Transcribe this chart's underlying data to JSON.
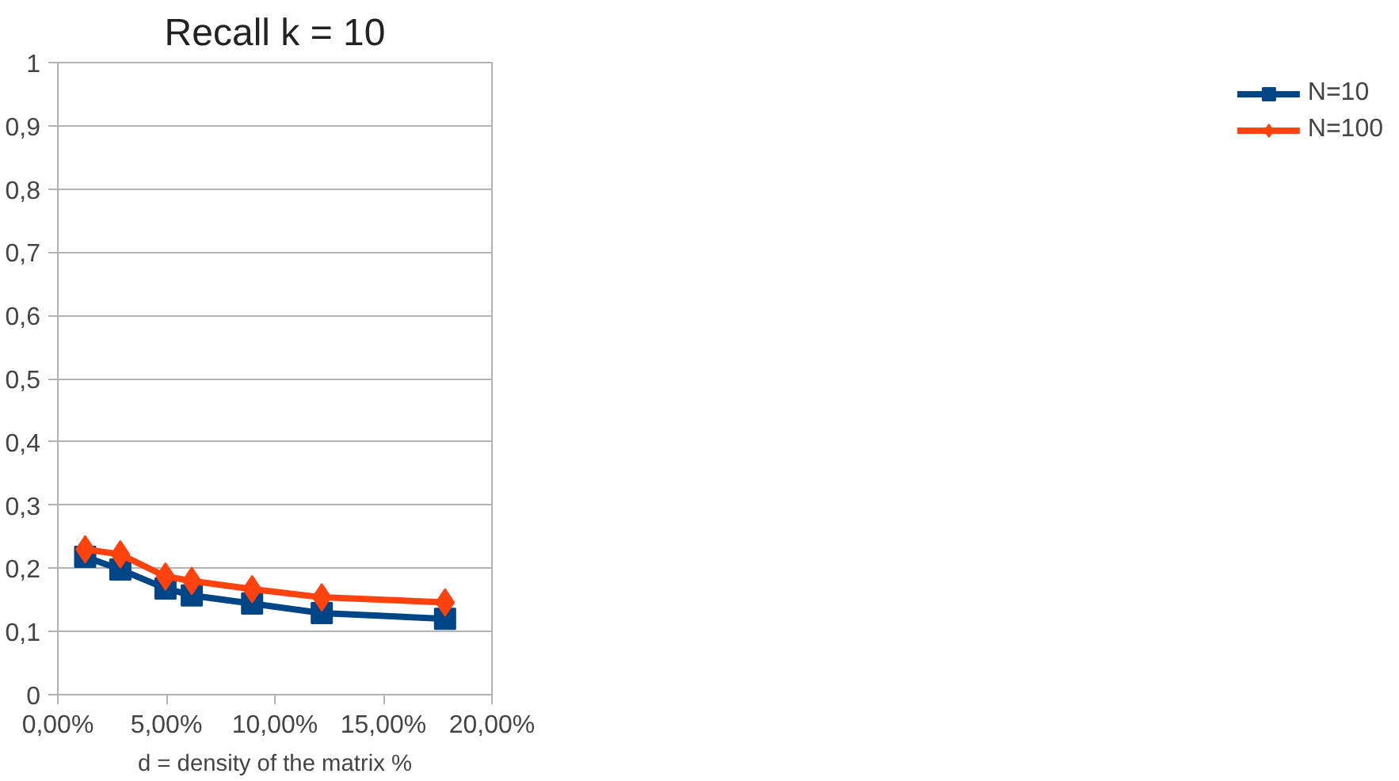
{
  "chart_data": {
    "type": "line",
    "title": "Recall k = 10",
    "xlabel": "d = density of the matrix %",
    "x": [
      1.26,
      2.88,
      4.96,
      6.17,
      8.95,
      12.16,
      17.84
    ],
    "series": [
      {
        "name": "N=10",
        "color": "#004586",
        "marker": "square",
        "values": [
          0.218,
          0.198,
          0.168,
          0.157,
          0.144,
          0.129,
          0.12
        ]
      },
      {
        "name": "N=100",
        "color": "#ff420e",
        "marker": "diamond",
        "values": [
          0.23,
          0.222,
          0.187,
          0.18,
          0.167,
          0.154,
          0.146
        ]
      }
    ],
    "xlim": [
      0,
      20
    ],
    "xticks": [
      {
        "value": 0,
        "label": "0,00%"
      },
      {
        "value": 5,
        "label": "5,00%"
      },
      {
        "value": 10,
        "label": "10,00%"
      },
      {
        "value": 15,
        "label": "15,00%"
      },
      {
        "value": 20,
        "label": "20,00%"
      }
    ],
    "ylim": [
      0,
      1
    ],
    "yticks": [
      0,
      {
        "value": 0.1,
        "label": "0,1"
      },
      {
        "value": 0.2,
        "label": "0,2"
      },
      {
        "value": 0.3,
        "label": "0,3"
      },
      {
        "value": 0.4,
        "label": "0,4"
      },
      {
        "value": 0.5,
        "label": "0,5"
      },
      {
        "value": 0.6,
        "label": "0,6"
      },
      {
        "value": 0.7,
        "label": "0,7"
      },
      {
        "value": 0.8,
        "label": "0,8"
      },
      {
        "value": 0.9,
        "label": "0,9"
      },
      1
    ],
    "grid": "y",
    "legend": "right",
    "line_style": "solid"
  }
}
